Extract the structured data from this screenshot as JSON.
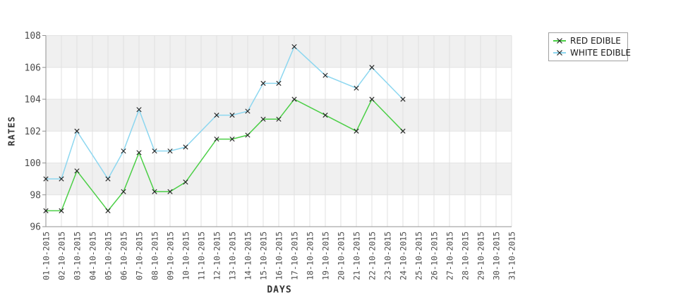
{
  "chart_data": {
    "type": "line",
    "title": "",
    "xlabel": "DAYS",
    "ylabel": "RATES",
    "ylim": [
      96,
      108
    ],
    "ytick_step": 2,
    "yticks": [
      96,
      98,
      100,
      102,
      104,
      106,
      108
    ],
    "grid": true,
    "plot_bands_alternating": true,
    "legend_position": "top-right",
    "marker": "x",
    "marker_color": "#222222",
    "categories": [
      "01-10-2015",
      "02-10-2015",
      "03-10-2015",
      "04-10-2015",
      "05-10-2015",
      "06-10-2015",
      "07-10-2015",
      "08-10-2015",
      "09-10-2015",
      "10-10-2015",
      "11-10-2015",
      "12-10-2015",
      "13-10-2015",
      "14-10-2015",
      "15-10-2015",
      "16-10-2015",
      "17-10-2015",
      "18-10-2015",
      "19-10-2015",
      "20-10-2015",
      "21-10-2015",
      "22-10-2015",
      "23-10-2015",
      "24-10-2015",
      "25-10-2015",
      "26-10-2015",
      "27-10-2015",
      "28-10-2015",
      "29-10-2015",
      "30-10-2015",
      "31-10-2015"
    ],
    "series": [
      {
        "name": "RED EDIBLE",
        "color": "#4ccf47",
        "values": [
          97,
          97,
          99.5,
          null,
          97,
          98.2,
          100.65,
          98.2,
          98.2,
          98.8,
          null,
          101.5,
          101.5,
          101.75,
          102.75,
          102.75,
          104,
          null,
          103,
          null,
          102,
          104,
          null,
          102,
          null,
          null,
          null,
          null,
          null,
          null,
          null
        ]
      },
      {
        "name": "WHITE EDIBLE",
        "color": "#8dd7f0",
        "values": [
          99,
          99,
          102,
          null,
          99,
          100.75,
          103.35,
          100.75,
          100.75,
          101,
          null,
          103,
          103,
          103.25,
          105,
          105,
          107.3,
          null,
          105.5,
          null,
          104.7,
          106,
          null,
          104,
          null,
          null,
          null,
          null,
          null,
          null,
          null
        ]
      }
    ]
  }
}
